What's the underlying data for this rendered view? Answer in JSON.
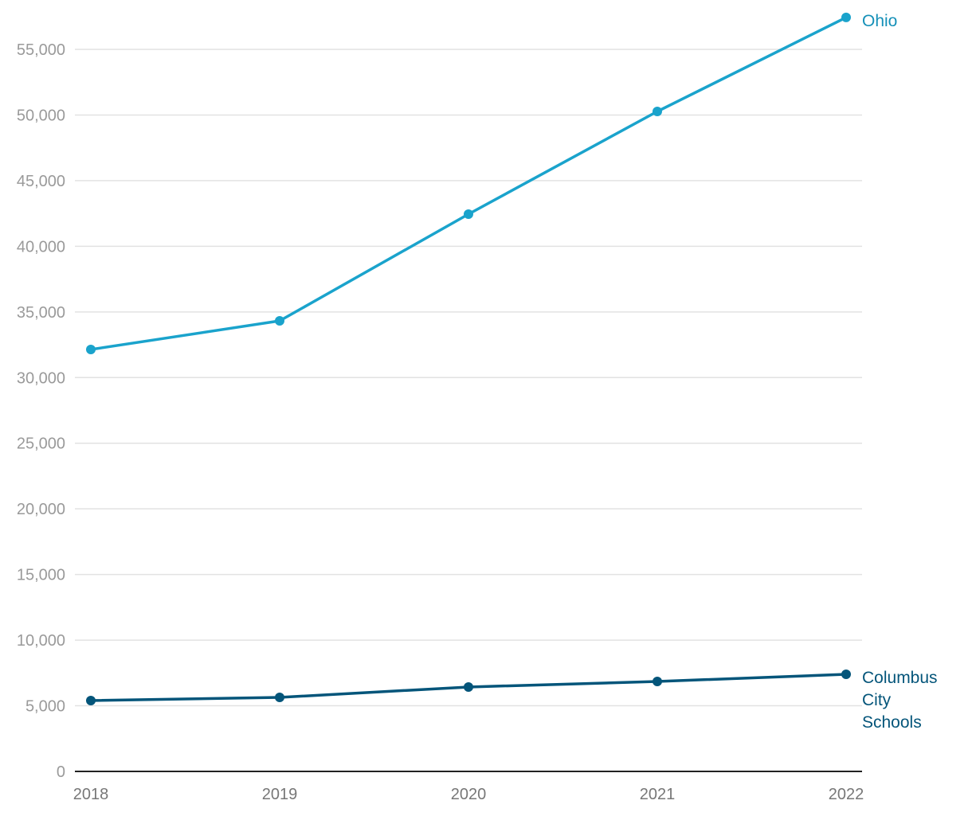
{
  "chart_data": {
    "type": "line",
    "title": "",
    "xlabel": "",
    "ylabel": "",
    "x": [
      2018,
      2019,
      2020,
      2021,
      2022
    ],
    "x_tick_labels": [
      "2018",
      "2019",
      "2020",
      "2021",
      "2022"
    ],
    "ylim": [
      0,
      55000
    ],
    "y_ticks": [
      0,
      5000,
      10000,
      15000,
      20000,
      25000,
      30000,
      35000,
      40000,
      45000,
      50000,
      55000
    ],
    "y_tick_labels": [
      "0",
      "5,000",
      "10,000",
      "15,000",
      "20,000",
      "25,000",
      "30,000",
      "35,000",
      "40,000",
      "45,000",
      "50,000",
      "55,000"
    ],
    "grid": true,
    "legend": "direct labels at line ends (right)",
    "series": [
      {
        "name": "Ohio",
        "label_lines": [
          "Ohio"
        ],
        "color": "#1aa3cc",
        "label_color": "#1590b8",
        "values": [
          32140,
          34320,
          42450,
          50270,
          57430
        ]
      },
      {
        "name": "Columbus City Schools",
        "label_lines": [
          "Columbus",
          "City",
          "Schools"
        ],
        "color": "#04557a",
        "label_color": "#04557a",
        "values": [
          5400,
          5640,
          6430,
          6850,
          7400
        ]
      }
    ]
  }
}
